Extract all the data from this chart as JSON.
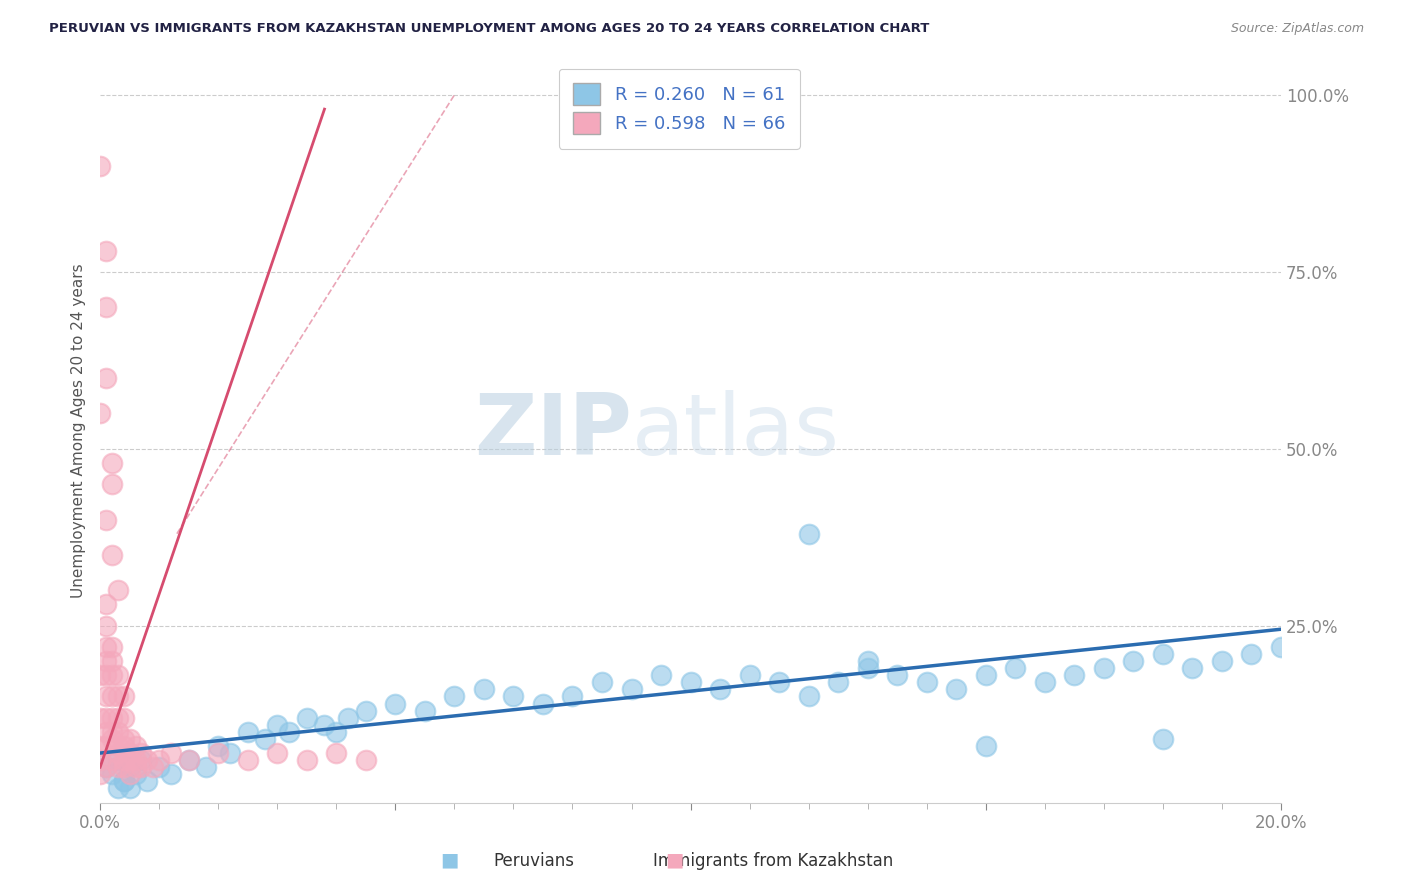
{
  "title": "PERUVIAN VS IMMIGRANTS FROM KAZAKHSTAN UNEMPLOYMENT AMONG AGES 20 TO 24 YEARS CORRELATION CHART",
  "source": "Source: ZipAtlas.com",
  "ylabel_axis": "Unemployment Among Ages 20 to 24 years",
  "legend_blue_r": "R = 0.260",
  "legend_blue_n": "N = 61",
  "legend_pink_r": "R = 0.598",
  "legend_pink_n": "N = 66",
  "legend_label_blue": "Peruvians",
  "legend_label_pink": "Immigrants from Kazakhstan",
  "blue_color": "#8ec6e6",
  "pink_color": "#f4a8bc",
  "blue_line_color": "#2b6cb0",
  "pink_line_color": "#d64c6f",
  "watermark_zip": "ZIP",
  "watermark_atlas": "atlas",
  "watermark_color": "#d0dff0",
  "title_color": "#222244",
  "axis_label_color": "#4472c4",
  "grid_color": "#cccccc",
  "background_color": "#ffffff",
  "blue_scatter_x": [
    0.001,
    0.002,
    0.003,
    0.004,
    0.005,
    0.006,
    0.007,
    0.008,
    0.01,
    0.012,
    0.015,
    0.018,
    0.02,
    0.022,
    0.025,
    0.028,
    0.03,
    0.032,
    0.035,
    0.038,
    0.04,
    0.042,
    0.045,
    0.05,
    0.055,
    0.06,
    0.065,
    0.07,
    0.075,
    0.08,
    0.085,
    0.09,
    0.095,
    0.1,
    0.105,
    0.11,
    0.115,
    0.12,
    0.125,
    0.13,
    0.135,
    0.14,
    0.145,
    0.15,
    0.155,
    0.16,
    0.165,
    0.17,
    0.175,
    0.18,
    0.185,
    0.19,
    0.195,
    0.2,
    0.003,
    0.004,
    0.12,
    0.13,
    0.15,
    0.18,
    0.005
  ],
  "blue_scatter_y": [
    0.05,
    0.04,
    0.06,
    0.03,
    0.05,
    0.04,
    0.06,
    0.03,
    0.05,
    0.04,
    0.06,
    0.05,
    0.08,
    0.07,
    0.1,
    0.09,
    0.11,
    0.1,
    0.12,
    0.11,
    0.1,
    0.12,
    0.13,
    0.14,
    0.13,
    0.15,
    0.16,
    0.15,
    0.14,
    0.15,
    0.17,
    0.16,
    0.18,
    0.17,
    0.16,
    0.18,
    0.17,
    0.15,
    0.17,
    0.19,
    0.18,
    0.17,
    0.16,
    0.18,
    0.19,
    0.17,
    0.18,
    0.19,
    0.2,
    0.21,
    0.19,
    0.2,
    0.21,
    0.22,
    0.02,
    0.03,
    0.38,
    0.2,
    0.08,
    0.09,
    0.02
  ],
  "pink_scatter_x": [
    0.0,
    0.0,
    0.0,
    0.0,
    0.0,
    0.001,
    0.001,
    0.001,
    0.001,
    0.001,
    0.001,
    0.001,
    0.001,
    0.001,
    0.001,
    0.002,
    0.002,
    0.002,
    0.002,
    0.002,
    0.002,
    0.002,
    0.002,
    0.003,
    0.003,
    0.003,
    0.003,
    0.003,
    0.003,
    0.003,
    0.004,
    0.004,
    0.004,
    0.004,
    0.004,
    0.004,
    0.005,
    0.005,
    0.005,
    0.005,
    0.006,
    0.006,
    0.006,
    0.007,
    0.007,
    0.008,
    0.009,
    0.01,
    0.012,
    0.015,
    0.02,
    0.025,
    0.03,
    0.035,
    0.04,
    0.045,
    0.0,
    0.001,
    0.001,
    0.002,
    0.002,
    0.0,
    0.001,
    0.003,
    0.002,
    0.001
  ],
  "pink_scatter_y": [
    0.04,
    0.06,
    0.08,
    0.12,
    0.18,
    0.05,
    0.08,
    0.1,
    0.12,
    0.15,
    0.18,
    0.2,
    0.22,
    0.25,
    0.28,
    0.06,
    0.09,
    0.12,
    0.15,
    0.18,
    0.2,
    0.22,
    0.1,
    0.07,
    0.1,
    0.12,
    0.15,
    0.18,
    0.08,
    0.05,
    0.06,
    0.09,
    0.12,
    0.15,
    0.08,
    0.05,
    0.06,
    0.09,
    0.07,
    0.04,
    0.06,
    0.08,
    0.05,
    0.07,
    0.05,
    0.06,
    0.05,
    0.06,
    0.07,
    0.06,
    0.07,
    0.06,
    0.07,
    0.06,
    0.07,
    0.06,
    0.55,
    0.6,
    0.7,
    0.45,
    0.35,
    0.9,
    0.78,
    0.3,
    0.48,
    0.4
  ],
  "blue_line": {
    "x0": 0.0,
    "x1": 0.2,
    "y0": 0.07,
    "y1": 0.245
  },
  "pink_line": {
    "x0": 0.0,
    "x1": 0.038,
    "y0": 0.05,
    "y1": 0.98
  },
  "xlim": [
    0.0,
    0.2
  ],
  "ylim": [
    0.0,
    1.05
  ],
  "ytick_vals": [
    0.0,
    0.25,
    0.5,
    0.75,
    1.0
  ],
  "ytick_labels": [
    "",
    "25.0%",
    "50.0%",
    "75.0%",
    "100.0%"
  ],
  "xtick_vals": [
    0.0,
    0.05,
    0.1,
    0.15,
    0.2
  ],
  "xtick_labels": [
    "0.0%",
    "",
    "",
    "",
    "20.0%"
  ]
}
